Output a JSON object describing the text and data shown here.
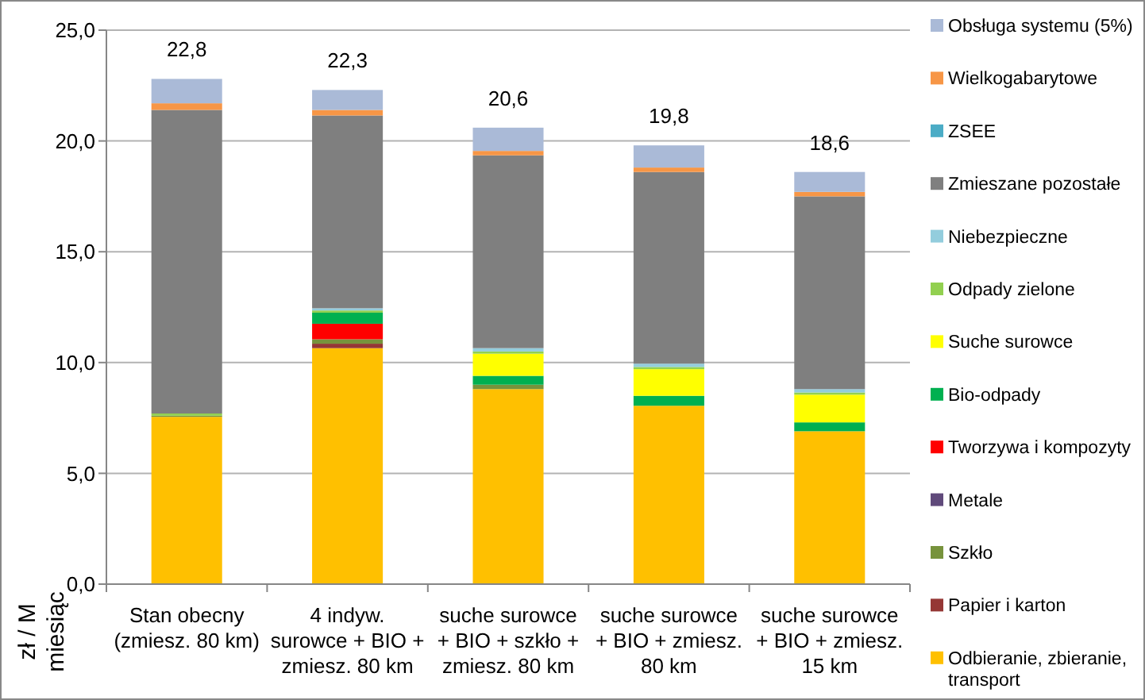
{
  "chart_data": {
    "type": "bar",
    "stacked": true,
    "ylabel": "zł / M miesiąc",
    "categories": [
      "Stan obecny (zmiesz. 80 km)",
      "4 indyw. surowce + BIO + zmiesz. 80 km",
      "suche surowce + BIO + szkło + zmiesz. 80 km",
      "suche surowce + BIO + zmiesz. 80 km",
      "suche surowce + BIO + zmiesz. 15 km"
    ],
    "series": [
      {
        "name": "Odbieranie, zbieranie, transport",
        "color": "#ffc000",
        "values": [
          7.55,
          10.65,
          8.8,
          8.05,
          6.9
        ]
      },
      {
        "name": "Papier i karton",
        "color": "#953735",
        "values": [
          0,
          0.2,
          0,
          0,
          0
        ]
      },
      {
        "name": "Szkło",
        "color": "#77933c",
        "values": [
          0.05,
          0.2,
          0.2,
          0,
          0
        ]
      },
      {
        "name": "Metale",
        "color": "#604a7b",
        "values": [
          0,
          0,
          0,
          0,
          0
        ]
      },
      {
        "name": "Tworzywa i kompozyty",
        "color": "#ff0000",
        "values": [
          0,
          0.7,
          0,
          0,
          0
        ]
      },
      {
        "name": "Bio-odpady",
        "color": "#00b050",
        "values": [
          0,
          0.5,
          0.4,
          0.45,
          0.4
        ]
      },
      {
        "name": "Suche surowce",
        "color": "#ffff00",
        "values": [
          0,
          0,
          1.0,
          1.2,
          1.25
        ]
      },
      {
        "name": "Odpady zielone",
        "color": "#92d050",
        "values": [
          0.1,
          0.1,
          0.1,
          0.1,
          0.1
        ]
      },
      {
        "name": "Niebezpieczne",
        "color": "#93cddd",
        "values": [
          0,
          0.1,
          0.15,
          0.15,
          0.15
        ]
      },
      {
        "name": "Zmieszane pozostałe",
        "color": "#7f7f7f",
        "values": [
          13.7,
          8.7,
          8.7,
          8.65,
          8.7
        ]
      },
      {
        "name": "ZSEE",
        "color": "#4bacc6",
        "values": [
          0,
          0,
          0,
          0,
          0
        ]
      },
      {
        "name": "Wielkogabarytowe",
        "color": "#f79646",
        "values": [
          0.3,
          0.25,
          0.2,
          0.2,
          0.2
        ]
      },
      {
        "name": "Obsługa systemu (5%)",
        "color": "#aabad7",
        "values": [
          1.1,
          0.9,
          1.05,
          1.0,
          0.9
        ]
      }
    ],
    "totals": [
      "22,8",
      "22,3",
      "20,6",
      "19,8",
      "18,6"
    ],
    "ylim": [
      0,
      25
    ],
    "yticks": [
      {
        "value": 0,
        "label": "0,0"
      },
      {
        "value": 5,
        "label": "5,0"
      },
      {
        "value": 10,
        "label": "10,0"
      },
      {
        "value": 15,
        "label": "15,0"
      },
      {
        "value": 20,
        "label": "20,0"
      },
      {
        "value": 25,
        "label": "25,0"
      }
    ],
    "grid": "y",
    "legend": "right"
  }
}
